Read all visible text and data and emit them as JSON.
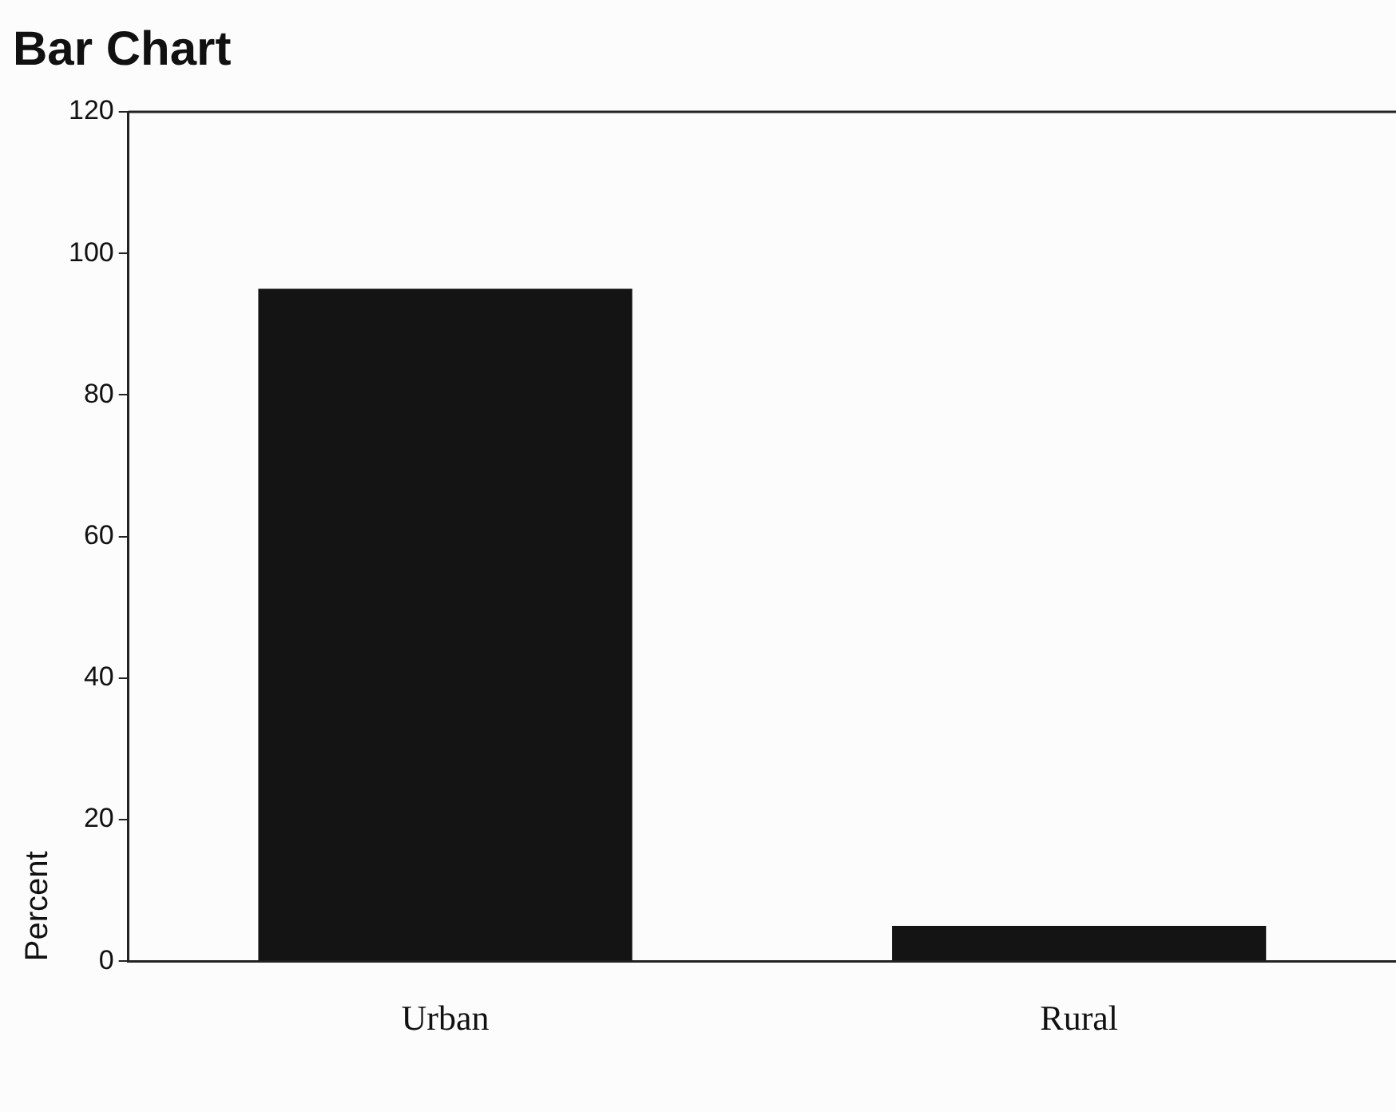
{
  "chart_data": {
    "type": "bar",
    "title": "Bar Chart",
    "ylabel": "Percent",
    "categories": [
      "Urban",
      "Rural"
    ],
    "values": [
      95,
      5
    ],
    "color": "#141414",
    "ylim": [
      0,
      120
    ],
    "yticks": [
      0,
      20,
      40,
      60,
      80,
      100,
      120
    ],
    "grid": false,
    "legend": false
  }
}
